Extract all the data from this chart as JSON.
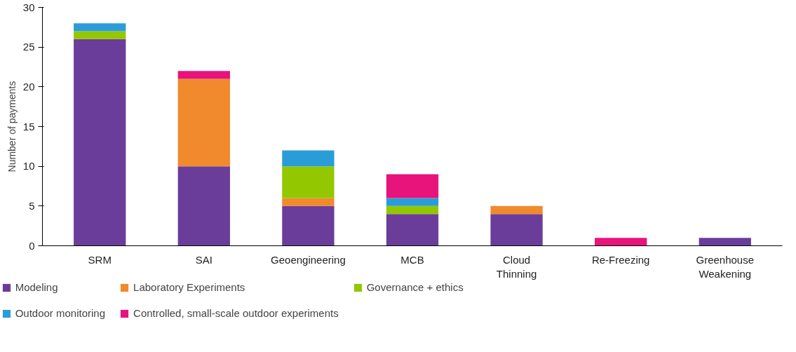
{
  "chart_data": {
    "type": "bar",
    "stacked": true,
    "ylabel": "Number of payments",
    "categories": [
      "SRM",
      "SAI",
      "Geoengineering",
      "MCB",
      "Cloud Thinning",
      "Re-Freezing",
      "Greenhouse Weakening"
    ],
    "series": [
      {
        "name": "Modeling",
        "color": "#6b3d9a",
        "values": [
          26,
          10,
          5,
          4,
          4,
          0,
          1
        ]
      },
      {
        "name": "Laboratory Experiments",
        "color": "#f08a2c",
        "values": [
          0,
          11,
          1,
          0,
          1,
          0,
          0
        ]
      },
      {
        "name": "Governance + ethics",
        "color": "#93c700",
        "values": [
          1,
          0,
          4,
          1,
          0,
          0,
          0
        ]
      },
      {
        "name": "Outdoor monitoring",
        "color": "#2a9dd8",
        "values": [
          1,
          0,
          2,
          1,
          0,
          0,
          0
        ]
      },
      {
        "name": "Controlled, small-scale outdoor experiments",
        "color": "#e8137b",
        "values": [
          0,
          1,
          0,
          3,
          0,
          1,
          0
        ]
      }
    ],
    "ylim": [
      0,
      30
    ],
    "yticks": [
      0,
      5,
      10,
      15,
      20,
      25,
      30
    ],
    "grid": false,
    "legend": "bottom left"
  }
}
